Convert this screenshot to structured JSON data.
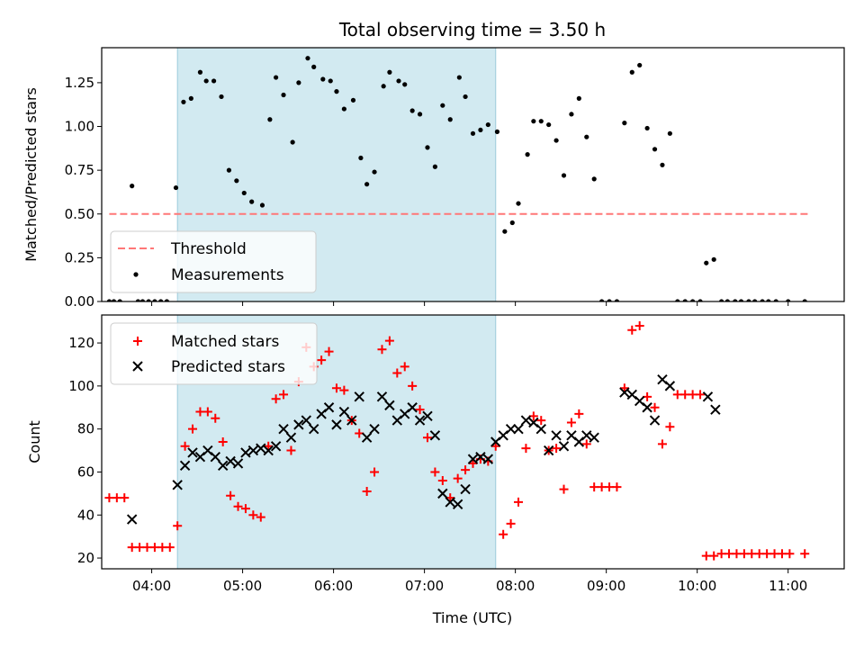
{
  "chart_data": [
    {
      "type": "scatter",
      "title": "Total observing time = 3.50 h",
      "xlabel": "",
      "ylabel": "Matched/Predicted stars",
      "ylim": [
        0,
        1.45
      ],
      "xlim": [
        "03:27",
        "11:37"
      ],
      "yticks": [
        "0.00",
        "0.25",
        "0.50",
        "0.75",
        "1.00",
        "1.25"
      ],
      "shaded_span": [
        "04:17",
        "07:47"
      ],
      "legend_position": "lower-left",
      "threshold": {
        "name": "Threshold",
        "y": 0.5,
        "x": [
          "03:32",
          "11:15"
        ],
        "color": "#ff7777",
        "style": "dashed"
      },
      "series": [
        {
          "name": "Measurements",
          "color": "#000000",
          "marker": "dot",
          "points": [
            [
              "03:32",
              0
            ],
            [
              "03:35",
              0
            ],
            [
              "03:39",
              0
            ],
            [
              "03:47",
              0.66
            ],
            [
              "03:51",
              0
            ],
            [
              "03:54",
              0
            ],
            [
              "03:58",
              0
            ],
            [
              "04:02",
              0
            ],
            [
              "04:06",
              0
            ],
            [
              "04:10",
              0
            ],
            [
              "04:16",
              0.65
            ],
            [
              "04:21",
              1.14
            ],
            [
              "04:26",
              1.16
            ],
            [
              "04:32",
              1.31
            ],
            [
              "04:36",
              1.26
            ],
            [
              "04:41",
              1.26
            ],
            [
              "04:46",
              1.17
            ],
            [
              "04:51",
              0.75
            ],
            [
              "04:56",
              0.69
            ],
            [
              "05:01",
              0.62
            ],
            [
              "05:06",
              0.57
            ],
            [
              "05:13",
              0.55
            ],
            [
              "05:18",
              1.04
            ],
            [
              "05:22",
              1.28
            ],
            [
              "05:27",
              1.18
            ],
            [
              "05:33",
              0.91
            ],
            [
              "05:37",
              1.25
            ],
            [
              "05:43",
              1.39
            ],
            [
              "05:47",
              1.34
            ],
            [
              "05:53",
              1.27
            ],
            [
              "05:58",
              1.26
            ],
            [
              "06:02",
              1.2
            ],
            [
              "06:07",
              1.1
            ],
            [
              "06:13",
              1.15
            ],
            [
              "06:18",
              0.82
            ],
            [
              "06:22",
              0.67
            ],
            [
              "06:27",
              0.74
            ],
            [
              "06:33",
              1.23
            ],
            [
              "06:37",
              1.31
            ],
            [
              "06:43",
              1.26
            ],
            [
              "06:47",
              1.24
            ],
            [
              "06:52",
              1.09
            ],
            [
              "06:57",
              1.07
            ],
            [
              "07:02",
              0.88
            ],
            [
              "07:07",
              0.77
            ],
            [
              "07:12",
              1.12
            ],
            [
              "07:17",
              1.04
            ],
            [
              "07:23",
              1.28
            ],
            [
              "07:27",
              1.17
            ],
            [
              "07:32",
              0.96
            ],
            [
              "07:37",
              0.98
            ],
            [
              "07:42",
              1.01
            ],
            [
              "07:48",
              0.97
            ],
            [
              "07:53",
              0.4
            ],
            [
              "07:58",
              0.45
            ],
            [
              "08:02",
              0.56
            ],
            [
              "08:08",
              0.84
            ],
            [
              "08:12",
              1.03
            ],
            [
              "08:17",
              1.03
            ],
            [
              "08:22",
              1.01
            ],
            [
              "08:27",
              0.92
            ],
            [
              "08:32",
              0.72
            ],
            [
              "08:37",
              1.07
            ],
            [
              "08:42",
              1.16
            ],
            [
              "08:47",
              0.94
            ],
            [
              "08:52",
              0.7
            ],
            [
              "08:57",
              0
            ],
            [
              "09:02",
              0
            ],
            [
              "09:07",
              0
            ],
            [
              "09:12",
              1.02
            ],
            [
              "09:17",
              1.31
            ],
            [
              "09:22",
              1.35
            ],
            [
              "09:27",
              0.99
            ],
            [
              "09:32",
              0.87
            ],
            [
              "09:37",
              0.78
            ],
            [
              "09:42",
              0.96
            ],
            [
              "09:47",
              0
            ],
            [
              "09:52",
              0
            ],
            [
              "09:57",
              0
            ],
            [
              "10:02",
              0
            ],
            [
              "10:06",
              0.22
            ],
            [
              "10:11",
              0.24
            ],
            [
              "10:16",
              0
            ],
            [
              "10:20",
              0
            ],
            [
              "10:25",
              0
            ],
            [
              "10:29",
              0
            ],
            [
              "10:34",
              0
            ],
            [
              "10:38",
              0
            ],
            [
              "10:43",
              0
            ],
            [
              "10:47",
              0
            ],
            [
              "10:52",
              0
            ],
            [
              "11:00",
              0
            ],
            [
              "11:11",
              0
            ]
          ]
        }
      ]
    },
    {
      "type": "scatter",
      "title": "",
      "xlabel": "Time (UTC)",
      "ylabel": "Count",
      "ylim": [
        15,
        133
      ],
      "xlim": [
        "03:27",
        "11:37"
      ],
      "yticks": [
        "20",
        "40",
        "60",
        "80",
        "100",
        "120"
      ],
      "xticks": [
        "04:00",
        "05:00",
        "06:00",
        "07:00",
        "08:00",
        "09:00",
        "10:00",
        "11:00"
      ],
      "shaded_span": [
        "04:17",
        "07:47"
      ],
      "legend_position": "upper-left",
      "series": [
        {
          "name": "Matched stars",
          "color": "#ff0000",
          "marker": "plus",
          "points": [
            [
              "03:32",
              48
            ],
            [
              "03:37",
              48
            ],
            [
              "03:42",
              48
            ],
            [
              "03:47",
              25
            ],
            [
              "03:52",
              25
            ],
            [
              "03:57",
              25
            ],
            [
              "04:02",
              25
            ],
            [
              "04:07",
              25
            ],
            [
              "04:12",
              25
            ],
            [
              "04:17",
              35
            ],
            [
              "04:22",
              72
            ],
            [
              "04:27",
              80
            ],
            [
              "04:32",
              88
            ],
            [
              "04:37",
              88
            ],
            [
              "04:42",
              85
            ],
            [
              "04:47",
              74
            ],
            [
              "04:52",
              49
            ],
            [
              "04:57",
              44
            ],
            [
              "05:02",
              43
            ],
            [
              "05:07",
              40
            ],
            [
              "05:12",
              39
            ],
            [
              "05:17",
              72
            ],
            [
              "05:22",
              94
            ],
            [
              "05:27",
              96
            ],
            [
              "05:32",
              70
            ],
            [
              "05:37",
              102
            ],
            [
              "05:42",
              118
            ],
            [
              "05:47",
              109
            ],
            [
              "05:52",
              112
            ],
            [
              "05:57",
              116
            ],
            [
              "06:02",
              99
            ],
            [
              "06:07",
              98
            ],
            [
              "06:12",
              84
            ],
            [
              "06:17",
              78
            ],
            [
              "06:22",
              51
            ],
            [
              "06:27",
              60
            ],
            [
              "06:32",
              117
            ],
            [
              "06:37",
              121
            ],
            [
              "06:42",
              106
            ],
            [
              "06:47",
              109
            ],
            [
              "06:52",
              100
            ],
            [
              "06:57",
              89
            ],
            [
              "07:02",
              76
            ],
            [
              "07:07",
              60
            ],
            [
              "07:12",
              56
            ],
            [
              "07:17",
              48
            ],
            [
              "07:22",
              57
            ],
            [
              "07:27",
              61
            ],
            [
              "07:32",
              64
            ],
            [
              "07:37",
              66
            ],
            [
              "07:42",
              65
            ],
            [
              "07:47",
              72
            ],
            [
              "07:52",
              31
            ],
            [
              "07:57",
              36
            ],
            [
              "08:02",
              46
            ],
            [
              "08:07",
              71
            ],
            [
              "08:12",
              86
            ],
            [
              "08:17",
              84
            ],
            [
              "08:22",
              70
            ],
            [
              "08:27",
              71
            ],
            [
              "08:32",
              52
            ],
            [
              "08:37",
              83
            ],
            [
              "08:42",
              87
            ],
            [
              "08:47",
              73
            ],
            [
              "08:52",
              53
            ],
            [
              "08:57",
              53
            ],
            [
              "09:02",
              53
            ],
            [
              "09:07",
              53
            ],
            [
              "09:12",
              99
            ],
            [
              "09:17",
              126
            ],
            [
              "09:22",
              128
            ],
            [
              "09:27",
              95
            ],
            [
              "09:32",
              90
            ],
            [
              "09:37",
              73
            ],
            [
              "09:42",
              81
            ],
            [
              "09:47",
              96
            ],
            [
              "09:52",
              96
            ],
            [
              "09:57",
              96
            ],
            [
              "10:02",
              96
            ],
            [
              "10:06",
              21
            ],
            [
              "10:11",
              21
            ],
            [
              "10:16",
              22
            ],
            [
              "10:21",
              22
            ],
            [
              "10:26",
              22
            ],
            [
              "10:31",
              22
            ],
            [
              "10:36",
              22
            ],
            [
              "10:41",
              22
            ],
            [
              "10:46",
              22
            ],
            [
              "10:51",
              22
            ],
            [
              "10:56",
              22
            ],
            [
              "11:01",
              22
            ],
            [
              "11:11",
              22
            ]
          ]
        },
        {
          "name": "Predicted stars",
          "color": "#000000",
          "marker": "cross",
          "points": [
            [
              "03:47",
              38
            ],
            [
              "04:17",
              54
            ],
            [
              "04:22",
              63
            ],
            [
              "04:27",
              69
            ],
            [
              "04:32",
              67
            ],
            [
              "04:37",
              70
            ],
            [
              "04:42",
              67
            ],
            [
              "04:47",
              63
            ],
            [
              "04:52",
              65
            ],
            [
              "04:57",
              64
            ],
            [
              "05:02",
              69
            ],
            [
              "05:07",
              70
            ],
            [
              "05:12",
              71
            ],
            [
              "05:17",
              70
            ],
            [
              "05:22",
              72
            ],
            [
              "05:27",
              80
            ],
            [
              "05:32",
              76
            ],
            [
              "05:37",
              82
            ],
            [
              "05:42",
              84
            ],
            [
              "05:47",
              80
            ],
            [
              "05:52",
              87
            ],
            [
              "05:57",
              90
            ],
            [
              "06:02",
              82
            ],
            [
              "06:07",
              88
            ],
            [
              "06:12",
              84
            ],
            [
              "06:17",
              95
            ],
            [
              "06:22",
              76
            ],
            [
              "06:27",
              80
            ],
            [
              "06:32",
              95
            ],
            [
              "06:37",
              91
            ],
            [
              "06:42",
              84
            ],
            [
              "06:47",
              87
            ],
            [
              "06:52",
              90
            ],
            [
              "06:57",
              84
            ],
            [
              "07:02",
              86
            ],
            [
              "07:07",
              77
            ],
            [
              "07:12",
              50
            ],
            [
              "07:17",
              46
            ],
            [
              "07:22",
              45
            ],
            [
              "07:27",
              52
            ],
            [
              "07:32",
              66
            ],
            [
              "07:37",
              67
            ],
            [
              "07:42",
              66
            ],
            [
              "07:47",
              74
            ],
            [
              "07:52",
              77
            ],
            [
              "07:57",
              80
            ],
            [
              "08:02",
              80
            ],
            [
              "08:07",
              84
            ],
            [
              "08:12",
              83
            ],
            [
              "08:17",
              80
            ],
            [
              "08:22",
              70
            ],
            [
              "08:27",
              77
            ],
            [
              "08:32",
              72
            ],
            [
              "08:37",
              77
            ],
            [
              "08:42",
              74
            ],
            [
              "08:47",
              77
            ],
            [
              "08:52",
              76
            ],
            [
              "09:12",
              97
            ],
            [
              "09:17",
              96
            ],
            [
              "09:22",
              93
            ],
            [
              "09:27",
              90
            ],
            [
              "09:32",
              84
            ],
            [
              "09:37",
              103
            ],
            [
              "09:42",
              100
            ],
            [
              "10:07",
              95
            ],
            [
              "10:12",
              89
            ]
          ]
        }
      ]
    }
  ]
}
